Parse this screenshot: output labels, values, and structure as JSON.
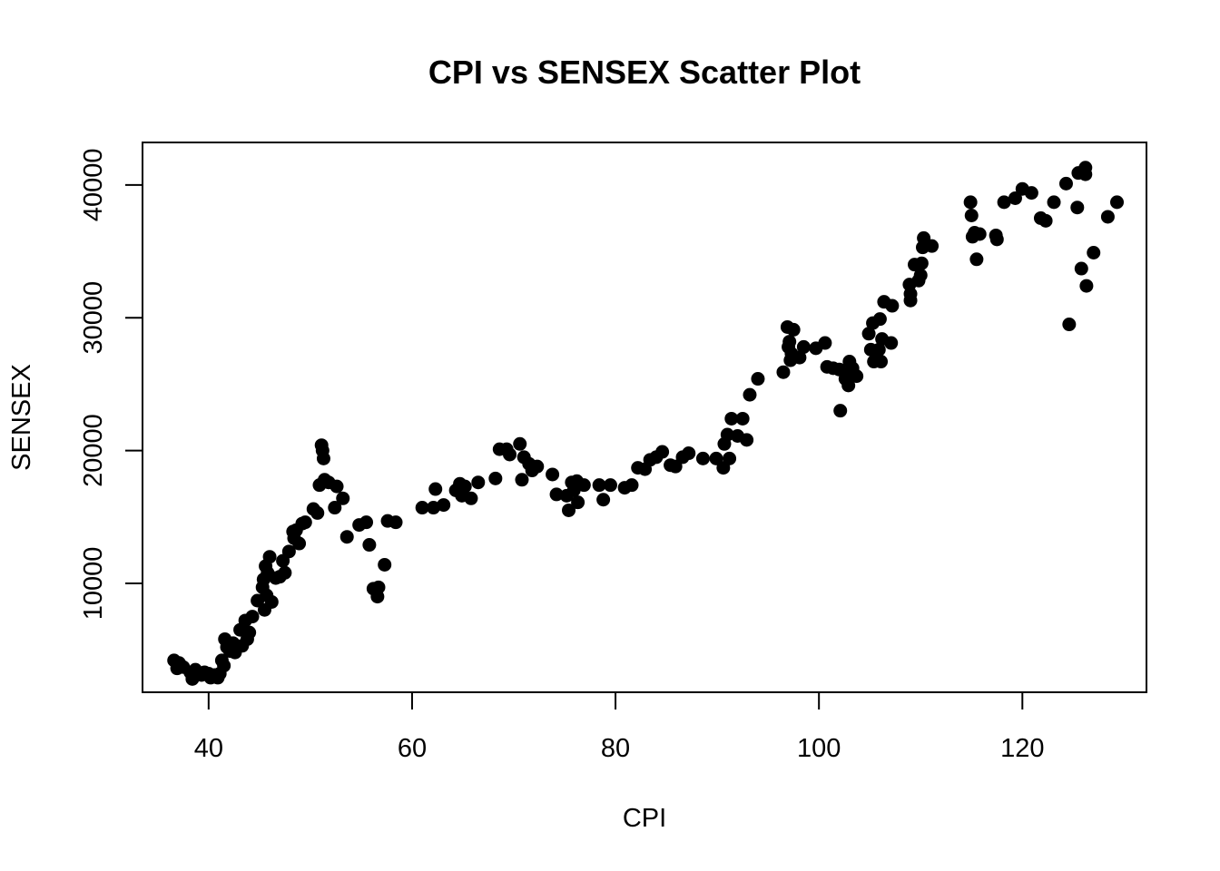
{
  "chart_data": {
    "type": "scatter",
    "title": "CPI vs SENSEX Scatter Plot",
    "xlabel": "CPI",
    "ylabel": "SENSEX",
    "xlim": [
      33.5,
      132.2
    ],
    "ylim": [
      1800,
      43200
    ],
    "xticks": [
      40,
      60,
      80,
      100,
      120
    ],
    "xtick_labels": [
      "40",
      "60",
      "80",
      "100",
      "120"
    ],
    "yticks": [
      10000,
      20000,
      30000,
      40000
    ],
    "ytick_labels": [
      "10000",
      "20000",
      "30000",
      "40000"
    ],
    "grid": false,
    "legend": "none",
    "marker_color": "#000000",
    "points": [
      [
        36.6,
        4200
      ],
      [
        36.9,
        3600
      ],
      [
        37.1,
        4000
      ],
      [
        37.5,
        3700
      ],
      [
        38.2,
        3300
      ],
      [
        38.4,
        2800
      ],
      [
        38.7,
        3500
      ],
      [
        39.3,
        3100
      ],
      [
        39.6,
        3300
      ],
      [
        40.0,
        3200
      ],
      [
        40.2,
        2900
      ],
      [
        40.6,
        3100
      ],
      [
        40.9,
        2900
      ],
      [
        41.1,
        3200
      ],
      [
        41.3,
        4200
      ],
      [
        41.5,
        3800
      ],
      [
        41.6,
        5800
      ],
      [
        41.8,
        5200
      ],
      [
        42.1,
        4900
      ],
      [
        42.4,
        5500
      ],
      [
        42.6,
        4800
      ],
      [
        43.1,
        6500
      ],
      [
        43.3,
        5300
      ],
      [
        43.6,
        7200
      ],
      [
        43.8,
        5800
      ],
      [
        44.0,
        6300
      ],
      [
        44.3,
        7500
      ],
      [
        44.8,
        8700
      ],
      [
        45.3,
        9700
      ],
      [
        45.4,
        10300
      ],
      [
        45.5,
        8000
      ],
      [
        45.6,
        11300
      ],
      [
        45.7,
        9100
      ],
      [
        45.8,
        10800
      ],
      [
        46.0,
        12000
      ],
      [
        46.2,
        8600
      ],
      [
        46.6,
        10400
      ],
      [
        47.0,
        10500
      ],
      [
        47.3,
        11700
      ],
      [
        47.5,
        10800
      ],
      [
        47.9,
        12400
      ],
      [
        48.3,
        13900
      ],
      [
        48.4,
        13400
      ],
      [
        48.6,
        14000
      ],
      [
        48.9,
        13000
      ],
      [
        49.2,
        14500
      ],
      [
        49.5,
        14600
      ],
      [
        50.3,
        15600
      ],
      [
        50.7,
        15300
      ],
      [
        50.9,
        17400
      ],
      [
        51.1,
        20400
      ],
      [
        51.2,
        20000
      ],
      [
        51.3,
        19400
      ],
      [
        51.4,
        17800
      ],
      [
        51.8,
        17600
      ],
      [
        52.4,
        15700
      ],
      [
        52.6,
        17300
      ],
      [
        53.2,
        16400
      ],
      [
        53.6,
        13500
      ],
      [
        54.8,
        14400
      ],
      [
        55.5,
        14600
      ],
      [
        55.8,
        12900
      ],
      [
        56.2,
        9600
      ],
      [
        56.6,
        9000
      ],
      [
        56.7,
        9700
      ],
      [
        57.3,
        11400
      ],
      [
        57.6,
        14700
      ],
      [
        58.4,
        14600
      ],
      [
        61.0,
        15700
      ],
      [
        62.1,
        15700
      ],
      [
        62.3,
        17100
      ],
      [
        63.1,
        15900
      ],
      [
        64.3,
        17000
      ],
      [
        64.7,
        17500
      ],
      [
        64.9,
        16600
      ],
      [
        65.2,
        17300
      ],
      [
        65.8,
        16400
      ],
      [
        66.5,
        17600
      ],
      [
        68.2,
        17900
      ],
      [
        68.6,
        20100
      ],
      [
        69.3,
        20100
      ],
      [
        69.6,
        19700
      ],
      [
        70.6,
        20500
      ],
      [
        70.8,
        17800
      ],
      [
        71.0,
        19500
      ],
      [
        71.5,
        19000
      ],
      [
        71.8,
        18500
      ],
      [
        72.3,
        18800
      ],
      [
        73.8,
        18200
      ],
      [
        74.2,
        16700
      ],
      [
        75.2,
        16600
      ],
      [
        75.4,
        15500
      ],
      [
        75.7,
        17600
      ],
      [
        75.9,
        17000
      ],
      [
        76.2,
        17700
      ],
      [
        76.3,
        16100
      ],
      [
        76.9,
        17400
      ],
      [
        78.4,
        17400
      ],
      [
        78.8,
        16300
      ],
      [
        79.5,
        17400
      ],
      [
        80.9,
        17200
      ],
      [
        81.6,
        17400
      ],
      [
        82.2,
        18700
      ],
      [
        82.9,
        18600
      ],
      [
        83.4,
        19300
      ],
      [
        84.0,
        19500
      ],
      [
        84.6,
        19900
      ],
      [
        85.4,
        18900
      ],
      [
        85.9,
        18800
      ],
      [
        86.6,
        19500
      ],
      [
        87.2,
        19800
      ],
      [
        88.6,
        19400
      ],
      [
        89.9,
        19400
      ],
      [
        90.6,
        18700
      ],
      [
        90.7,
        20500
      ],
      [
        91.0,
        21200
      ],
      [
        91.2,
        19400
      ],
      [
        91.4,
        22400
      ],
      [
        92.0,
        21100
      ],
      [
        92.5,
        22400
      ],
      [
        92.9,
        20800
      ],
      [
        93.2,
        24200
      ],
      [
        94.0,
        25400
      ],
      [
        96.5,
        25900
      ],
      [
        96.9,
        29300
      ],
      [
        97.0,
        27800
      ],
      [
        97.1,
        28200
      ],
      [
        97.2,
        26800
      ],
      [
        97.3,
        27300
      ],
      [
        97.5,
        29100
      ],
      [
        98.1,
        27000
      ],
      [
        98.5,
        27800
      ],
      [
        99.7,
        27700
      ],
      [
        100.6,
        28100
      ],
      [
        100.8,
        26300
      ],
      [
        101.4,
        26200
      ],
      [
        102.0,
        26100
      ],
      [
        102.1,
        23000
      ],
      [
        102.6,
        25400
      ],
      [
        102.8,
        25800
      ],
      [
        102.9,
        24900
      ],
      [
        103.0,
        26700
      ],
      [
        103.3,
        26200
      ],
      [
        103.7,
        25600
      ],
      [
        104.9,
        28800
      ],
      [
        105.1,
        27600
      ],
      [
        105.3,
        29600
      ],
      [
        105.4,
        26700
      ],
      [
        105.6,
        27300
      ],
      [
        105.9,
        27600
      ],
      [
        106.0,
        29900
      ],
      [
        106.1,
        26700
      ],
      [
        106.2,
        28400
      ],
      [
        106.4,
        31200
      ],
      [
        107.1,
        28100
      ],
      [
        107.2,
        30900
      ],
      [
        108.9,
        32500
      ],
      [
        109.0,
        31300
      ],
      [
        109.0,
        31800
      ],
      [
        109.4,
        34000
      ],
      [
        109.8,
        32800
      ],
      [
        110.0,
        33200
      ],
      [
        110.1,
        34100
      ],
      [
        110.2,
        35300
      ],
      [
        110.3,
        36000
      ],
      [
        111.1,
        35400
      ],
      [
        114.9,
        38700
      ],
      [
        115.0,
        37700
      ],
      [
        115.1,
        36100
      ],
      [
        115.3,
        36400
      ],
      [
        115.5,
        34400
      ],
      [
        115.8,
        36300
      ],
      [
        117.4,
        36200
      ],
      [
        117.5,
        35900
      ],
      [
        118.2,
        38700
      ],
      [
        119.3,
        39000
      ],
      [
        120.0,
        39700
      ],
      [
        120.9,
        39400
      ],
      [
        121.8,
        37500
      ],
      [
        122.3,
        37300
      ],
      [
        123.1,
        38700
      ],
      [
        124.3,
        40100
      ],
      [
        124.6,
        29500
      ],
      [
        125.4,
        38300
      ],
      [
        125.5,
        40900
      ],
      [
        125.8,
        33700
      ],
      [
        126.2,
        41300
      ],
      [
        126.3,
        32400
      ],
      [
        126.2,
        40800
      ],
      [
        127.0,
        34900
      ],
      [
        128.4,
        37600
      ],
      [
        129.3,
        38700
      ]
    ]
  }
}
